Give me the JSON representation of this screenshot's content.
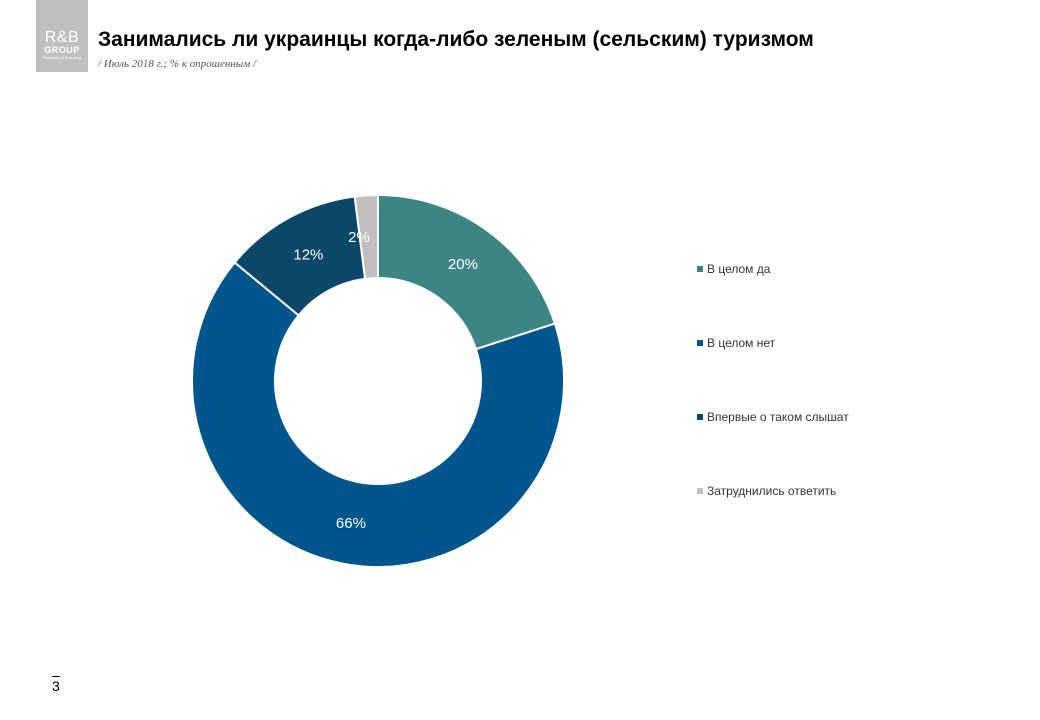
{
  "logo": {
    "main": "R&B",
    "sub1": "GROUP",
    "sub2": "Research & Branding"
  },
  "header": {
    "title": "Занимались ли украинцы когда-либо зеленым (сельским) туризмом",
    "subtitle": "/ Июль 2018 г.; % к опрошенным /"
  },
  "chart_data": {
    "type": "donut",
    "title": "Занимались ли украинцы когда-либо зеленым (сельским) туризмом",
    "categories": [
      "В целом да",
      "В целом нет",
      "Впервые о таком слышат",
      "Затруднились ответить"
    ],
    "values": [
      20,
      66,
      12,
      2
    ],
    "data_labels": [
      "20%",
      "66%",
      "12%",
      "2%"
    ],
    "colors": [
      "#3d8582",
      "#00568c",
      "#0c4769",
      "#bfbfbf"
    ],
    "legend_position": "right",
    "unit": "%"
  },
  "legend": {
    "items": [
      {
        "label": "В целом да",
        "color": "#3d8582"
      },
      {
        "label": "В целом нет",
        "color": "#00568c"
      },
      {
        "label": "Впервые о таком слышат",
        "color": "#0c4769"
      },
      {
        "label": "Затруднились ответить",
        "color": "#bfbfbf"
      }
    ]
  },
  "footer": {
    "page_number": "3"
  }
}
